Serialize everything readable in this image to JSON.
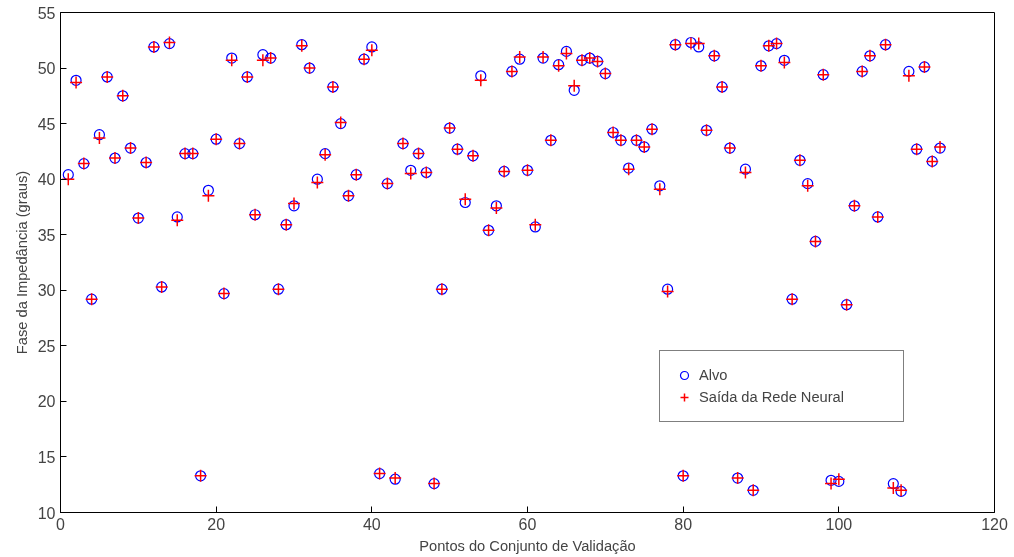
{
  "chart_data": {
    "type": "scatter",
    "xlabel": "Pontos do Conjunto de Validação",
    "ylabel": "Fase da Impedância (graus)",
    "x": [
      1,
      2,
      3,
      4,
      5,
      6,
      7,
      8,
      9,
      10,
      11,
      12,
      13,
      14,
      15,
      16,
      17,
      18,
      19,
      20,
      21,
      22,
      23,
      24,
      25,
      26,
      27,
      28,
      29,
      30,
      31,
      32,
      33,
      34,
      35,
      36,
      37,
      38,
      39,
      40,
      41,
      42,
      43,
      44,
      45,
      46,
      47,
      48,
      49,
      50,
      51,
      52,
      53,
      54,
      55,
      56,
      57,
      58,
      59,
      60,
      61,
      62,
      63,
      64,
      65,
      66,
      67,
      68,
      69,
      70,
      71,
      72,
      73,
      74,
      75,
      76,
      77,
      78,
      79,
      80,
      81,
      82,
      83,
      84,
      85,
      86,
      87,
      88,
      89,
      90,
      91,
      92,
      93,
      94,
      95,
      96,
      97,
      98,
      99,
      100,
      101,
      102,
      103,
      104,
      105,
      106,
      107,
      108,
      109,
      110,
      111,
      112,
      113
    ],
    "series": [
      {
        "name": "Alvo",
        "color": "#0000ff",
        "marker": "circle",
        "values": [
          40.4,
          48.9,
          41.4,
          29.2,
          44.0,
          49.2,
          41.9,
          47.5,
          42.8,
          36.5,
          41.5,
          51.9,
          30.3,
          52.2,
          36.6,
          42.3,
          42.3,
          13.3,
          39.0,
          43.6,
          29.7,
          50.9,
          43.2,
          49.2,
          36.8,
          51.2,
          50.9,
          30.1,
          35.9,
          37.6,
          52.1,
          50.0,
          40.0,
          42.3,
          48.3,
          45.0,
          38.5,
          40.4,
          50.8,
          51.9,
          13.5,
          39.6,
          13.0,
          43.2,
          40.8,
          42.3,
          40.6,
          12.6,
          30.1,
          44.6,
          42.7,
          37.9,
          42.1,
          49.3,
          35.4,
          37.6,
          40.7,
          49.7,
          50.8,
          40.8,
          35.7,
          50.9,
          43.5,
          50.3,
          51.5,
          48.0,
          50.7,
          50.9,
          50.6,
          49.5,
          44.2,
          43.5,
          41.0,
          43.5,
          42.9,
          44.5,
          39.4,
          30.1,
          52.1,
          13.3,
          52.3,
          51.9,
          44.4,
          51.1,
          48.3,
          42.8,
          13.1,
          40.9,
          12.0,
          50.2,
          52.0,
          52.2,
          50.7,
          29.2,
          41.7,
          39.6,
          34.4,
          49.4,
          12.9,
          12.8,
          28.7,
          37.6,
          49.7,
          51.1,
          36.6,
          52.1,
          12.6,
          11.9,
          49.7,
          42.7,
          50.1,
          41.6,
          42.8
        ]
      },
      {
        "name": "Saída da Rede Neural",
        "color": "#ff0000",
        "marker": "cross",
        "values": [
          40.0,
          48.7,
          41.4,
          29.2,
          43.7,
          49.2,
          41.9,
          47.5,
          42.8,
          36.5,
          41.5,
          51.9,
          30.3,
          52.3,
          36.3,
          42.3,
          42.3,
          13.3,
          38.5,
          43.6,
          29.7,
          50.7,
          43.2,
          49.2,
          36.8,
          50.7,
          50.9,
          30.1,
          35.9,
          37.8,
          52.0,
          50.0,
          39.7,
          42.2,
          48.3,
          45.1,
          38.5,
          40.4,
          50.8,
          51.6,
          13.5,
          39.6,
          13.1,
          43.2,
          40.5,
          42.3,
          40.6,
          12.6,
          30.1,
          44.6,
          42.7,
          38.2,
          42.1,
          48.9,
          35.4,
          37.4,
          40.7,
          49.7,
          51.0,
          40.8,
          35.9,
          51.0,
          43.5,
          50.2,
          51.3,
          48.4,
          50.7,
          50.9,
          50.6,
          49.5,
          44.2,
          43.5,
          40.9,
          43.5,
          42.9,
          44.5,
          39.1,
          29.9,
          52.1,
          13.3,
          52.2,
          52.2,
          44.4,
          51.1,
          48.3,
          42.8,
          13.1,
          40.6,
          12.0,
          50.2,
          52.0,
          52.2,
          50.5,
          29.2,
          41.7,
          39.4,
          34.4,
          49.4,
          12.6,
          13.0,
          28.7,
          37.6,
          49.7,
          51.1,
          36.6,
          52.1,
          12.2,
          12.0,
          49.3,
          42.7,
          50.1,
          41.6,
          42.9
        ]
      }
    ],
    "xlim": [
      0,
      120
    ],
    "xticks": [
      0,
      20,
      40,
      60,
      80,
      100,
      120
    ],
    "ylim": [
      10,
      55
    ],
    "yticks": [
      10,
      15,
      20,
      25,
      30,
      35,
      40,
      45,
      50,
      55
    ],
    "grid": false,
    "legend": "bottom right"
  }
}
